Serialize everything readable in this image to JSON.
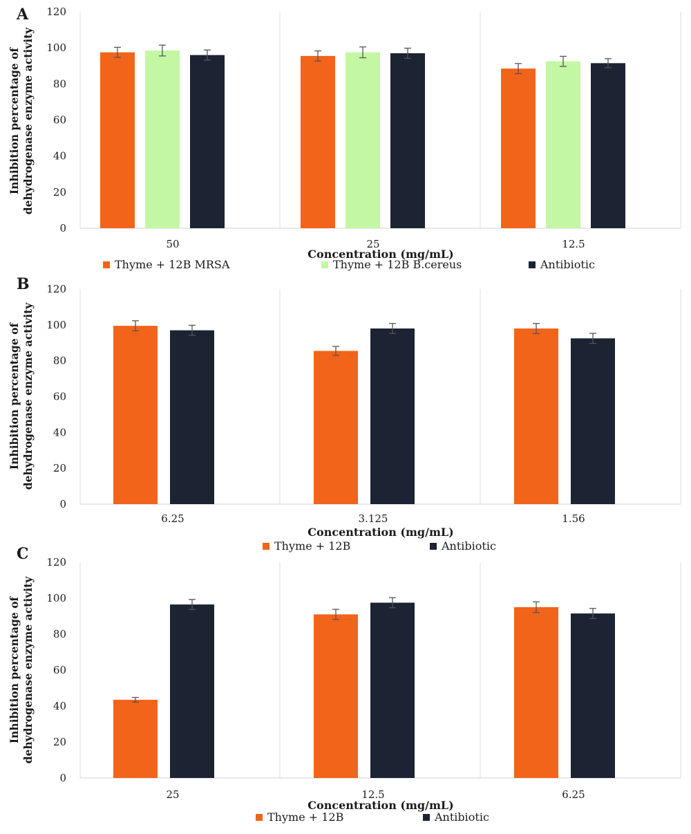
{
  "figure": {
    "panels": [
      "A",
      "B",
      "C"
    ]
  },
  "chart_data": [
    {
      "panel": "A",
      "type": "bar",
      "categories": [
        "50",
        "25",
        "12.5"
      ],
      "xlabel": "Concentration (mg/mL)",
      "ylabel_lines": [
        "Inhibition percentage of",
        "dehydrogenase enzyme activity"
      ],
      "ylim": [
        0,
        120
      ],
      "yticks": [
        "0",
        "20",
        "40",
        "60",
        "80",
        "100",
        "120"
      ],
      "grid": "vertical separators between categories",
      "legend_position": "bottom",
      "series": [
        {
          "name": "Thyme + 12B MRSA",
          "color": "#f26419",
          "values": [
            97.5,
            95.5,
            88.5
          ],
          "errors": [
            2.8,
            2.8,
            2.8
          ]
        },
        {
          "name": "Thyme + 12B B.cereus",
          "color": "#c3f7a3",
          "values": [
            98.5,
            97.5,
            92.5
          ],
          "errors": [
            3.0,
            3.0,
            2.8
          ]
        },
        {
          "name": "Antibiotic",
          "color": "#1c2333",
          "values": [
            96.0,
            97.0,
            91.5
          ],
          "errors": [
            2.8,
            2.8,
            2.5
          ]
        }
      ]
    },
    {
      "panel": "B",
      "type": "bar",
      "categories": [
        "6.25",
        "3.125",
        "1.56"
      ],
      "xlabel": "Concentration (mg/mL)",
      "ylabel_lines": [
        "Inhibition percentage of",
        "dehydrogenase enzyme activity"
      ],
      "ylim": [
        0,
        120
      ],
      "yticks": [
        "0",
        "20",
        "40",
        "60",
        "80",
        "100",
        "120"
      ],
      "grid": "vertical separators between categories",
      "legend_position": "bottom",
      "series": [
        {
          "name": "Thyme + 12B",
          "color": "#f26419",
          "values": [
            99.5,
            85.5,
            98.0
          ],
          "errors": [
            2.8,
            2.5,
            2.8
          ]
        },
        {
          "name": "Antibiotic",
          "color": "#1c2333",
          "values": [
            97.0,
            98.0,
            92.5
          ],
          "errors": [
            2.8,
            2.8,
            2.8
          ]
        }
      ]
    },
    {
      "panel": "C",
      "type": "bar",
      "categories": [
        "25",
        "12.5",
        "6.25"
      ],
      "xlabel": "Concentration (mg/mL)",
      "ylabel_lines": [
        "Inhibition percentage of",
        "dehydrogenase enzyme activity"
      ],
      "ylim": [
        0,
        120
      ],
      "yticks": [
        "0",
        "20",
        "40",
        "60",
        "80",
        "100",
        "120"
      ],
      "grid": "vertical separators between categories",
      "legend_position": "bottom",
      "series": [
        {
          "name": "Thyme + 12B",
          "color": "#f26419",
          "values": [
            43.5,
            91.0,
            95.0
          ],
          "errors": [
            1.3,
            2.8,
            3.0
          ]
        },
        {
          "name": "Antibiotic",
          "color": "#1c2333",
          "values": [
            96.5,
            97.5,
            91.5
          ],
          "errors": [
            2.8,
            2.8,
            2.8
          ]
        }
      ]
    }
  ]
}
